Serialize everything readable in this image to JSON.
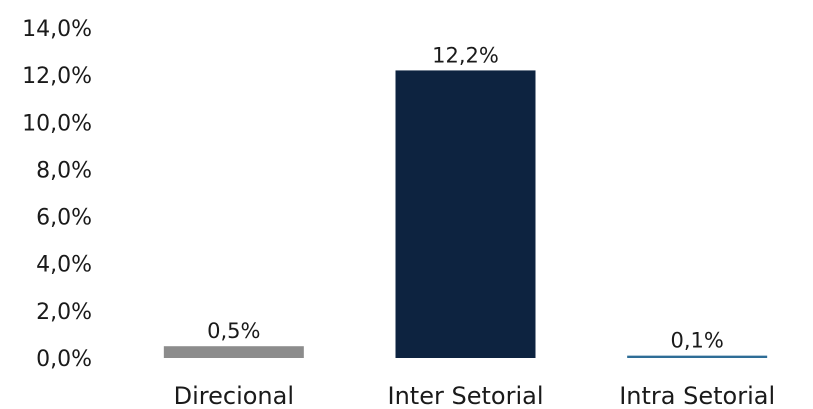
{
  "chart_data": {
    "type": "bar",
    "title": "",
    "xlabel": "",
    "ylabel": "",
    "categories": [
      "Direcional",
      "Inter Setorial",
      "Intra Setorial"
    ],
    "values": [
      0.5,
      12.2,
      0.1
    ],
    "data_labels": [
      "0,5%",
      "12,2%",
      "0,1%"
    ],
    "colors": [
      "#8c8c8c",
      "#0d2340",
      "#2e6d96"
    ],
    "ylim": [
      0,
      14
    ],
    "yticks": [
      0,
      2,
      4,
      6,
      8,
      10,
      12,
      14
    ],
    "ytick_labels": [
      "0,0%",
      "2,0%",
      "4,0%",
      "6,0%",
      "8,0%",
      "10,0%",
      "12,0%",
      "14,0%"
    ],
    "grid": false,
    "legend": "none"
  }
}
